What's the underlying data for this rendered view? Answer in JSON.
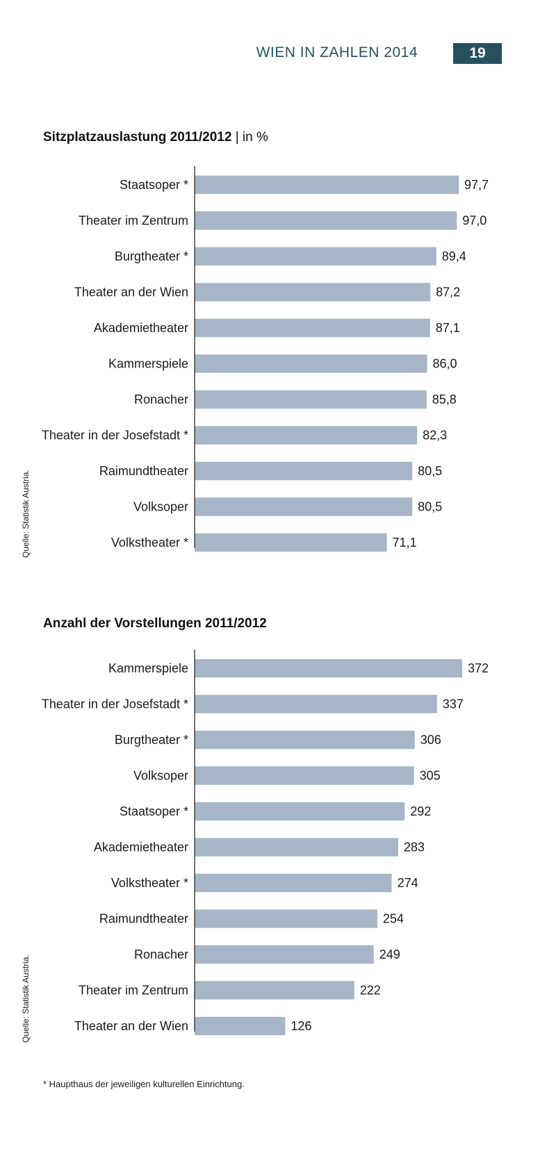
{
  "header": {
    "title": "WIEN IN ZAHLEN 2014",
    "page_number": "19"
  },
  "colors": {
    "bar": "#a6b6c6",
    "accent": "#27505f",
    "axis": "#1a1a1a"
  },
  "chart_data": [
    {
      "type": "bar",
      "orientation": "horizontal",
      "title": "Sitzplatzauslastung 2011/2012",
      "unit_label": "| in %",
      "xlim": [
        0,
        100
      ],
      "categories": [
        "Staatsoper *",
        "Theater im Zentrum",
        "Burgtheater *",
        "Theater an der Wien",
        "Akademietheater",
        "Kammerspiele",
        "Ronacher",
        "Theater in der Josefstadt *",
        "Raimundtheater",
        "Volksoper",
        "Volkstheater *"
      ],
      "values": [
        97.7,
        97.0,
        89.4,
        87.2,
        87.1,
        86.0,
        85.8,
        82.3,
        80.5,
        80.5,
        71.1
      ],
      "labels": [
        "97,7",
        "97,0",
        "89,4",
        "87,2",
        "87,1",
        "86,0",
        "85,8",
        "82,3",
        "80,5",
        "80,5",
        "71,1"
      ],
      "source": "Quelle: Statistik Austria."
    },
    {
      "type": "bar",
      "orientation": "horizontal",
      "title": "Anzahl der Vorstellungen 2011/2012",
      "unit_label": "",
      "xlim": [
        0,
        380
      ],
      "categories": [
        "Kammerspiele",
        "Theater in der Josefstadt *",
        "Burgtheater *",
        "Volksoper",
        "Staatsoper *",
        "Akademietheater",
        "Volkstheater *",
        "Raimundtheater",
        "Ronacher",
        "Theater im Zentrum",
        "Theater an der Wien"
      ],
      "values": [
        372,
        337,
        306,
        305,
        292,
        283,
        274,
        254,
        249,
        222,
        126
      ],
      "labels": [
        "372",
        "337",
        "306",
        "305",
        "292",
        "283",
        "274",
        "254",
        "249",
        "222",
        "126"
      ],
      "source": "Quelle: Statistik Austria."
    }
  ],
  "footnote": "* Haupthaus der jeweiligen kulturellen Einrichtung."
}
